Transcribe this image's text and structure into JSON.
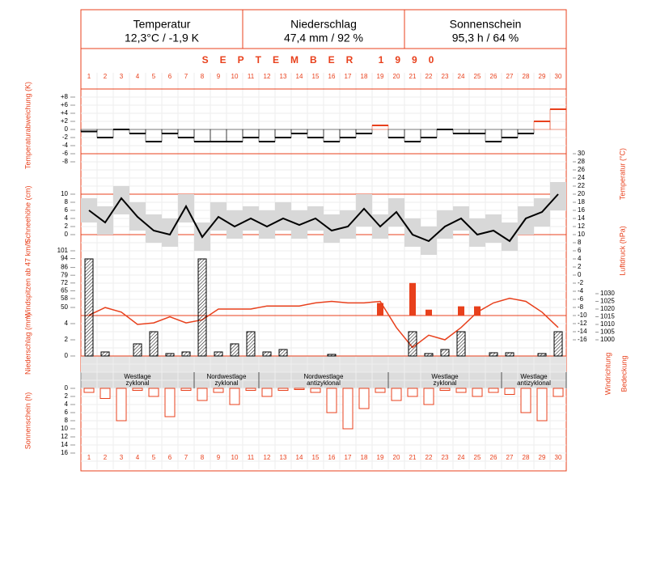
{
  "header": [
    {
      "title": "Temperatur",
      "value": "12,3°C / -1,9 K"
    },
    {
      "title": "Niederschlag",
      "value": "47,4 mm / 92 %"
    },
    {
      "title": "Sonnenschein",
      "value": "95,3 h / 64 %"
    }
  ],
  "title": "SEPTEMBER 1990",
  "days": [
    1,
    2,
    3,
    4,
    5,
    6,
    7,
    8,
    9,
    10,
    11,
    12,
    13,
    14,
    15,
    16,
    17,
    18,
    19,
    20,
    21,
    22,
    23,
    24,
    25,
    26,
    27,
    28,
    29,
    30
  ],
  "side_labels": [
    "Windrichtung",
    "Bedeckung"
  ],
  "weather_types": [
    {
      "lines": [
        "Westlage",
        "zyklonal"
      ],
      "days": [
        1,
        7
      ]
    },
    {
      "lines": [
        "Nordwestlage",
        "zyklonal"
      ],
      "days": [
        8,
        11
      ]
    },
    {
      "lines": [
        "Nordwestlage",
        "antizyklonal"
      ],
      "days": [
        12,
        19
      ]
    },
    {
      "lines": [
        "Westlage",
        "zyklonal"
      ],
      "days": [
        20,
        26
      ]
    },
    {
      "lines": [
        "Westlage",
        "antizyklonal"
      ],
      "days": [
        27,
        30
      ]
    }
  ],
  "chart_data": [
    {
      "type": "step",
      "ylabel": "Temperaturabweichung (K)",
      "ylim": [
        -8,
        8
      ],
      "yticks": [
        {
          "value": 8,
          "label": "+8"
        },
        {
          "value": 6,
          "label": "+6"
        },
        {
          "value": 4,
          "label": "+4"
        },
        {
          "value": 2,
          "label": "+2"
        },
        0,
        -2,
        -4,
        -6,
        -8
      ],
      "colors": {
        "positive": "#e8401c",
        "negative": "#000000"
      },
      "values": [
        -0.5,
        -2,
        0,
        -1,
        -3,
        -1,
        -2,
        -3,
        -3,
        -3,
        -2,
        -3,
        -2,
        -1,
        -2,
        -3,
        -2,
        -1,
        1,
        -2,
        -3,
        -2,
        0,
        -1,
        -1,
        -3,
        -2,
        -1,
        2,
        5
      ]
    },
    {
      "type": "line",
      "ylabel": "Temperatur (°C)",
      "ylim": [
        -16,
        30
      ],
      "yticks": [
        30,
        28,
        26,
        24,
        22,
        20,
        18,
        16,
        14,
        12,
        10,
        8,
        6,
        4,
        2,
        0,
        -2,
        -4,
        -6,
        -8,
        -10,
        -12,
        -14,
        -16
      ],
      "series": [
        {
          "name": "max",
          "color": "#d8d8d8",
          "values": [
            19,
            17,
            22,
            18,
            15,
            14,
            20,
            13,
            18,
            16,
            17,
            16,
            18,
            16,
            17,
            15,
            16,
            20,
            15,
            19,
            14,
            12,
            16,
            17,
            14,
            15,
            13,
            17,
            19,
            23
          ]
        },
        {
          "name": "min",
          "color": "#d8d8d8",
          "values": [
            13,
            10,
            15,
            11,
            8,
            7,
            13,
            6,
            11,
            9,
            11,
            9,
            11,
            9,
            11,
            8,
            9,
            12,
            9,
            12,
            7,
            5,
            9,
            11,
            7,
            8,
            6,
            10,
            12,
            16
          ]
        },
        {
          "name": "mean",
          "color": "#000000",
          "values": [
            16,
            13,
            19,
            14.4,
            11,
            10,
            17,
            9.4,
            14.4,
            12,
            14,
            12,
            14,
            12.4,
            14,
            11,
            12,
            16.4,
            12,
            15.6,
            10,
            8.4,
            12,
            14,
            10,
            11,
            8.4,
            14,
            15.6,
            20
          ]
        }
      ]
    },
    {
      "type": "none",
      "ylabel": "Schneehöhe (cm)",
      "ylim": [
        0,
        10
      ],
      "yticks": [
        10,
        8,
        6,
        4,
        2,
        0
      ]
    },
    {
      "type": "bar",
      "ylabel": "Windspitzen ab 47 km/h",
      "ylim": [
        50,
        101
      ],
      "color": "#e8401c",
      "yticks": [
        101,
        94,
        86,
        79,
        72,
        65,
        58,
        50
      ],
      "values": [
        null,
        null,
        null,
        null,
        null,
        null,
        null,
        null,
        null,
        null,
        null,
        null,
        null,
        null,
        null,
        null,
        null,
        null,
        54,
        null,
        72,
        48,
        null,
        51,
        51,
        null,
        null,
        null,
        null,
        null
      ]
    },
    {
      "type": "line",
      "ylabel": "Luftdruck (hPa)",
      "ylim": [
        1000,
        1030
      ],
      "color": "#e8401c",
      "yticks": [
        1030,
        1025,
        1020,
        1015,
        1010,
        1005,
        1000
      ],
      "values": [
        1016,
        1021,
        1018,
        1010,
        1011,
        1015,
        1011,
        1013,
        1020,
        1020,
        1020,
        1022,
        1022,
        1022,
        1024,
        1025,
        1024,
        1024,
        1025,
        1008,
        995,
        1003,
        1000,
        1008,
        1018,
        1024,
        1027,
        1025,
        1018,
        1008
      ]
    },
    {
      "type": "hatchbar",
      "ylabel": "Niederschlag (mm)",
      "ylim": [
        0,
        4
      ],
      "yticks": [
        4,
        2,
        0
      ],
      "values": [
        12,
        0.5,
        0,
        1.5,
        3,
        0.3,
        0.5,
        12,
        0.5,
        1.5,
        3,
        0.5,
        0.8,
        0,
        0,
        0.2,
        0,
        0,
        0,
        0,
        3,
        0.3,
        0.8,
        3,
        0,
        0.4,
        0.4,
        0,
        0.3,
        3
      ]
    },
    {
      "type": "downbar",
      "ylabel": "Sonnenschein (h)",
      "ylim": [
        0,
        16
      ],
      "color": "#e8401c",
      "yticks": [
        0,
        2,
        4,
        6,
        8,
        10,
        12,
        14,
        16
      ],
      "values": [
        1,
        2.5,
        8,
        0.5,
        2,
        7,
        0.5,
        3,
        1,
        4,
        0.5,
        2,
        0.5,
        0.3,
        1,
        6,
        10,
        5,
        1,
        3,
        2,
        4,
        0.5,
        1,
        2,
        1,
        1.5,
        6,
        8,
        2
      ]
    }
  ]
}
